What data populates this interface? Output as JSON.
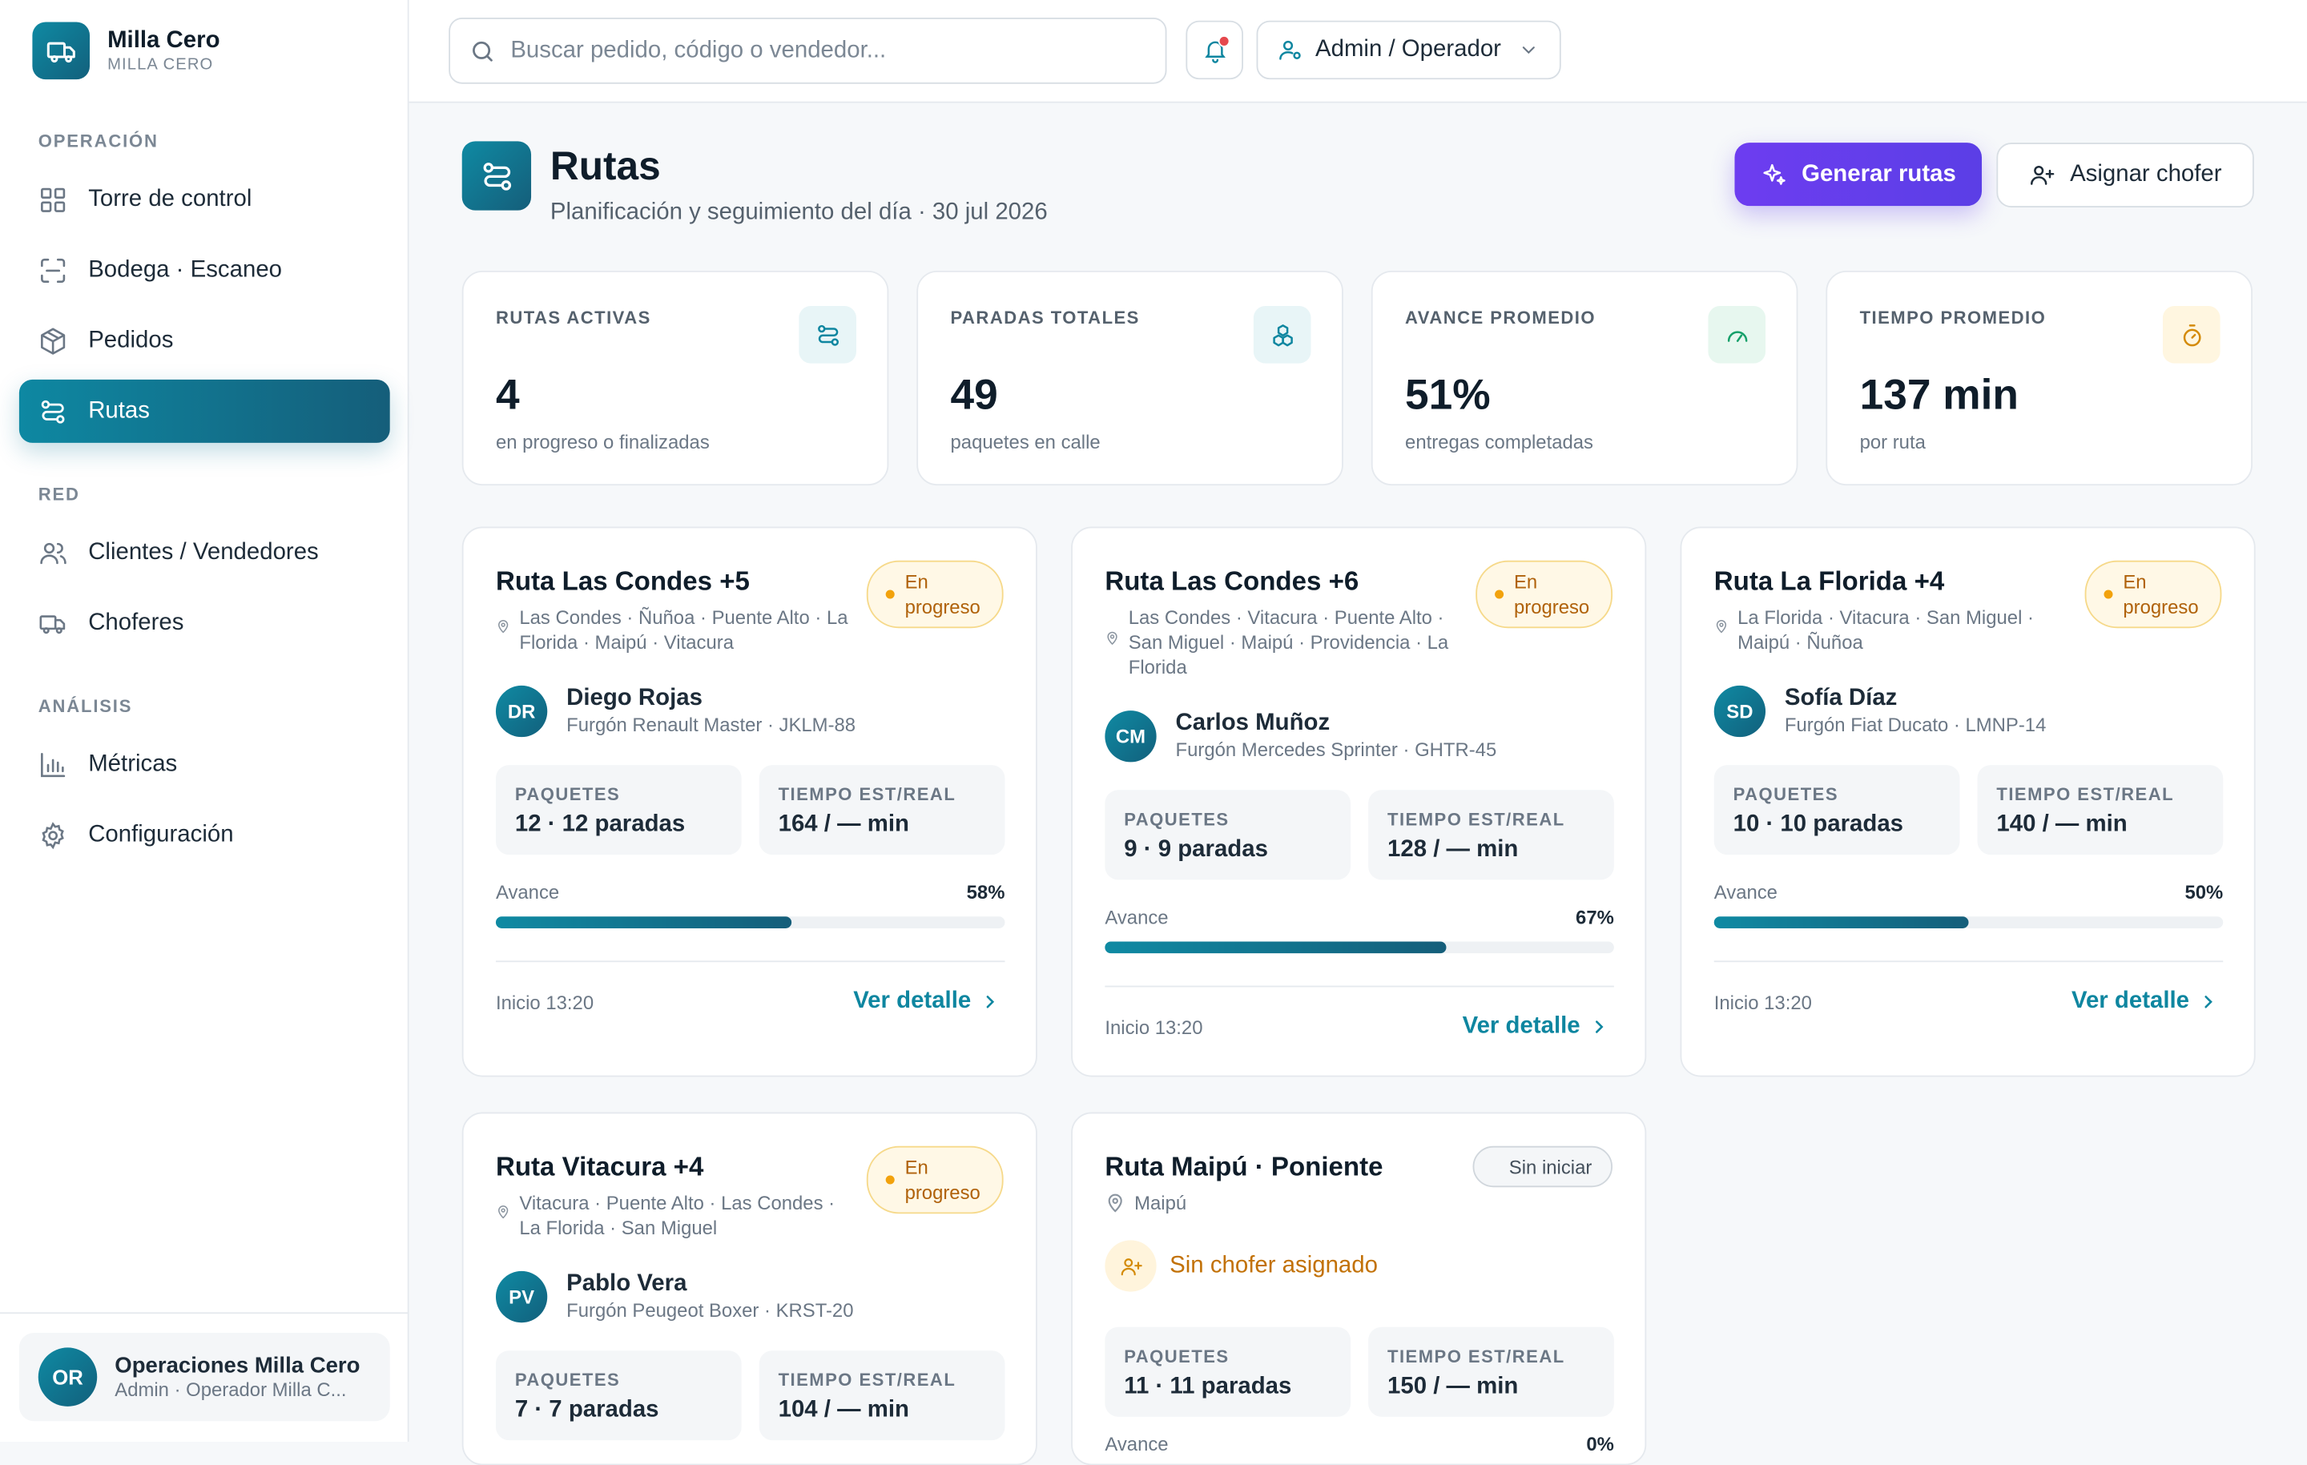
{
  "brand": {
    "name": "Milla Cero",
    "sub": "MILLA CERO"
  },
  "nav": {
    "sections": {
      "operacion": "OPERACIÓN",
      "red": "RED",
      "analisis": "ANÁLISIS"
    },
    "items": {
      "torre": "Torre de control",
      "bodega": "Bodega · Escaneo",
      "pedidos": "Pedidos",
      "rutas": "Rutas",
      "clientes": "Clientes / Vendedores",
      "choferes": "Choferes",
      "metricas": "Métricas",
      "config": "Configuración"
    }
  },
  "user": {
    "initials": "OR",
    "name": "Operaciones Milla Cero",
    "role": "Admin · Operador Milla C..."
  },
  "topbar": {
    "search_placeholder": "Buscar pedido, código o vendedor...",
    "role": "Admin / Operador"
  },
  "header": {
    "title": "Rutas",
    "subtitle": "Planificación y seguimiento del día · 30 jul 2026",
    "primary": "Generar rutas",
    "secondary": "Asignar chofer"
  },
  "kpis": [
    {
      "label": "RUTAS ACTIVAS",
      "value": "4",
      "sub": "en progreso o finalizadas",
      "icon_bg": "#e8f5f7",
      "icon_color": "#0e86a0"
    },
    {
      "label": "PARADAS TOTALES",
      "value": "49",
      "sub": "paquetes en calle",
      "icon_bg": "#e8f5f7",
      "icon_color": "#0e86a0"
    },
    {
      "label": "AVANCE PROMEDIO",
      "value": "51%",
      "sub": "entregas completadas",
      "icon_bg": "#e7f7ef",
      "icon_color": "#16a06a"
    },
    {
      "label": "TIEMPO PROMEDIO",
      "value": "137 min",
      "sub": "por ruta",
      "icon_bg": "#fff6e0",
      "icon_color": "#d48a06"
    }
  ],
  "labels": {
    "paquetes": "PAQUETES",
    "tiempo": "TIEMPO EST/REAL",
    "avance": "Avance",
    "detalle": "Ver detalle",
    "en_progreso": "En progreso",
    "sin_iniciar": "Sin iniciar",
    "sin_chofer": "Sin chofer asignado"
  },
  "routes": [
    {
      "title": "Ruta Las Condes +5",
      "areas": "Las Condes · Ñuñoa · Puente Alto · La Florida · Maipú · Vitacura",
      "initials": "DR",
      "driver": "Diego Rojas",
      "vehicle": "Furgón Renault Master · JKLM-88",
      "paquetes": "12 · 12 paradas",
      "tiempo": "164 / — min",
      "progress": 0.58,
      "progress_text": "58%",
      "start": "Inicio 13:20"
    },
    {
      "title": "Ruta Las Condes +6",
      "areas": "Las Condes · Vitacura · Puente Alto · San Miguel · Maipú · Providencia · La Florida",
      "initials": "CM",
      "driver": "Carlos Muñoz",
      "vehicle": "Furgón Mercedes Sprinter · GHTR-45",
      "paquetes": "9 · 9 paradas",
      "tiempo": "128 / — min",
      "progress": 0.67,
      "progress_text": "67%",
      "start": "Inicio 13:20"
    },
    {
      "title": "Ruta La Florida +4",
      "areas": "La Florida · Vitacura · San Miguel · Maipú · Ñuñoa",
      "initials": "SD",
      "driver": "Sofía Díaz",
      "vehicle": "Furgón Fiat Ducato · LMNP-14",
      "paquetes": "10 · 10 paradas",
      "tiempo": "140 / — min",
      "progress": 0.5,
      "progress_text": "50%",
      "start": "Inicio 13:20"
    },
    {
      "title": "Ruta Vitacura +4",
      "areas": "Vitacura · Puente Alto · Las Condes · La Florida · San Miguel",
      "initials": "PV",
      "driver": "Pablo Vera",
      "vehicle": "Furgón Peugeot Boxer · KRST-20",
      "paquetes": "7 · 7 paradas",
      "tiempo": "104 / — min"
    },
    {
      "title": "Ruta Maipú · Poniente",
      "areas": "Maipú",
      "paquetes": "11 · 11 paradas",
      "tiempo": "150 / — min",
      "progress_text": "0%"
    }
  ]
}
